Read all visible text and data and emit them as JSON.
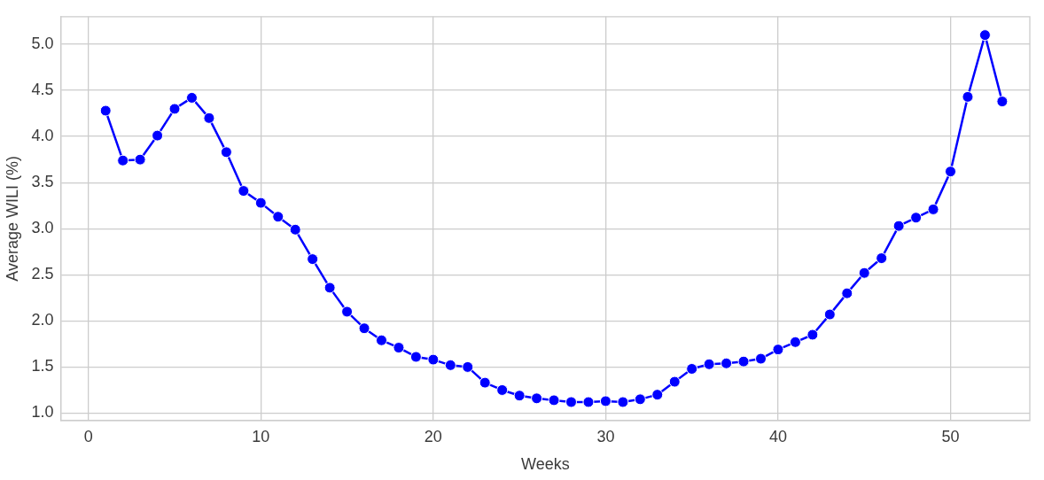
{
  "chart_data": {
    "type": "line",
    "xlabel": "Weeks",
    "ylabel": "Average WILI (%)",
    "x": [
      1,
      2,
      3,
      4,
      5,
      6,
      7,
      8,
      9,
      10,
      11,
      12,
      13,
      14,
      15,
      16,
      17,
      18,
      19,
      20,
      21,
      22,
      23,
      24,
      25,
      26,
      27,
      28,
      29,
      30,
      31,
      32,
      33,
      34,
      35,
      36,
      37,
      38,
      39,
      40,
      41,
      42,
      43,
      44,
      45,
      46,
      47,
      48,
      49,
      50,
      51,
      52,
      53
    ],
    "series": [
      {
        "color": "#0000ff",
        "values": [
          4.28,
          3.74,
          3.75,
          4.01,
          4.3,
          4.42,
          4.2,
          3.83,
          3.41,
          3.28,
          3.13,
          2.99,
          2.67,
          2.36,
          2.1,
          1.92,
          1.79,
          1.71,
          1.61,
          1.58,
          1.52,
          1.5,
          1.33,
          1.25,
          1.19,
          1.16,
          1.14,
          1.12,
          1.12,
          1.13,
          1.12,
          1.15,
          1.2,
          1.34,
          1.48,
          1.53,
          1.54,
          1.56,
          1.59,
          1.69,
          1.77,
          1.85,
          2.07,
          2.3,
          2.52,
          2.68,
          3.03,
          3.12,
          3.21,
          3.62,
          4.43,
          5.1,
          4.38
        ]
      }
    ],
    "xlim": [
      -1.6,
      54.6
    ],
    "xticks": [
      0,
      10,
      20,
      30,
      40,
      50
    ],
    "ylim": [
      0.92,
      5.3
    ],
    "yticks": [
      {
        "value": 1,
        "label": "1.0"
      },
      {
        "value": 1.5,
        "label": "1.5"
      },
      {
        "value": 2,
        "label": "2.0"
      },
      {
        "value": 2.5,
        "label": "2.5"
      },
      {
        "value": 3,
        "label": "3.0"
      },
      {
        "value": 3.5,
        "label": "3.5"
      },
      {
        "value": 4,
        "label": "4.0"
      },
      {
        "value": 4.5,
        "label": "4.5"
      },
      {
        "value": 5,
        "label": "5.0"
      }
    ],
    "grid": true,
    "marker": "circle",
    "line_style": "solid"
  }
}
